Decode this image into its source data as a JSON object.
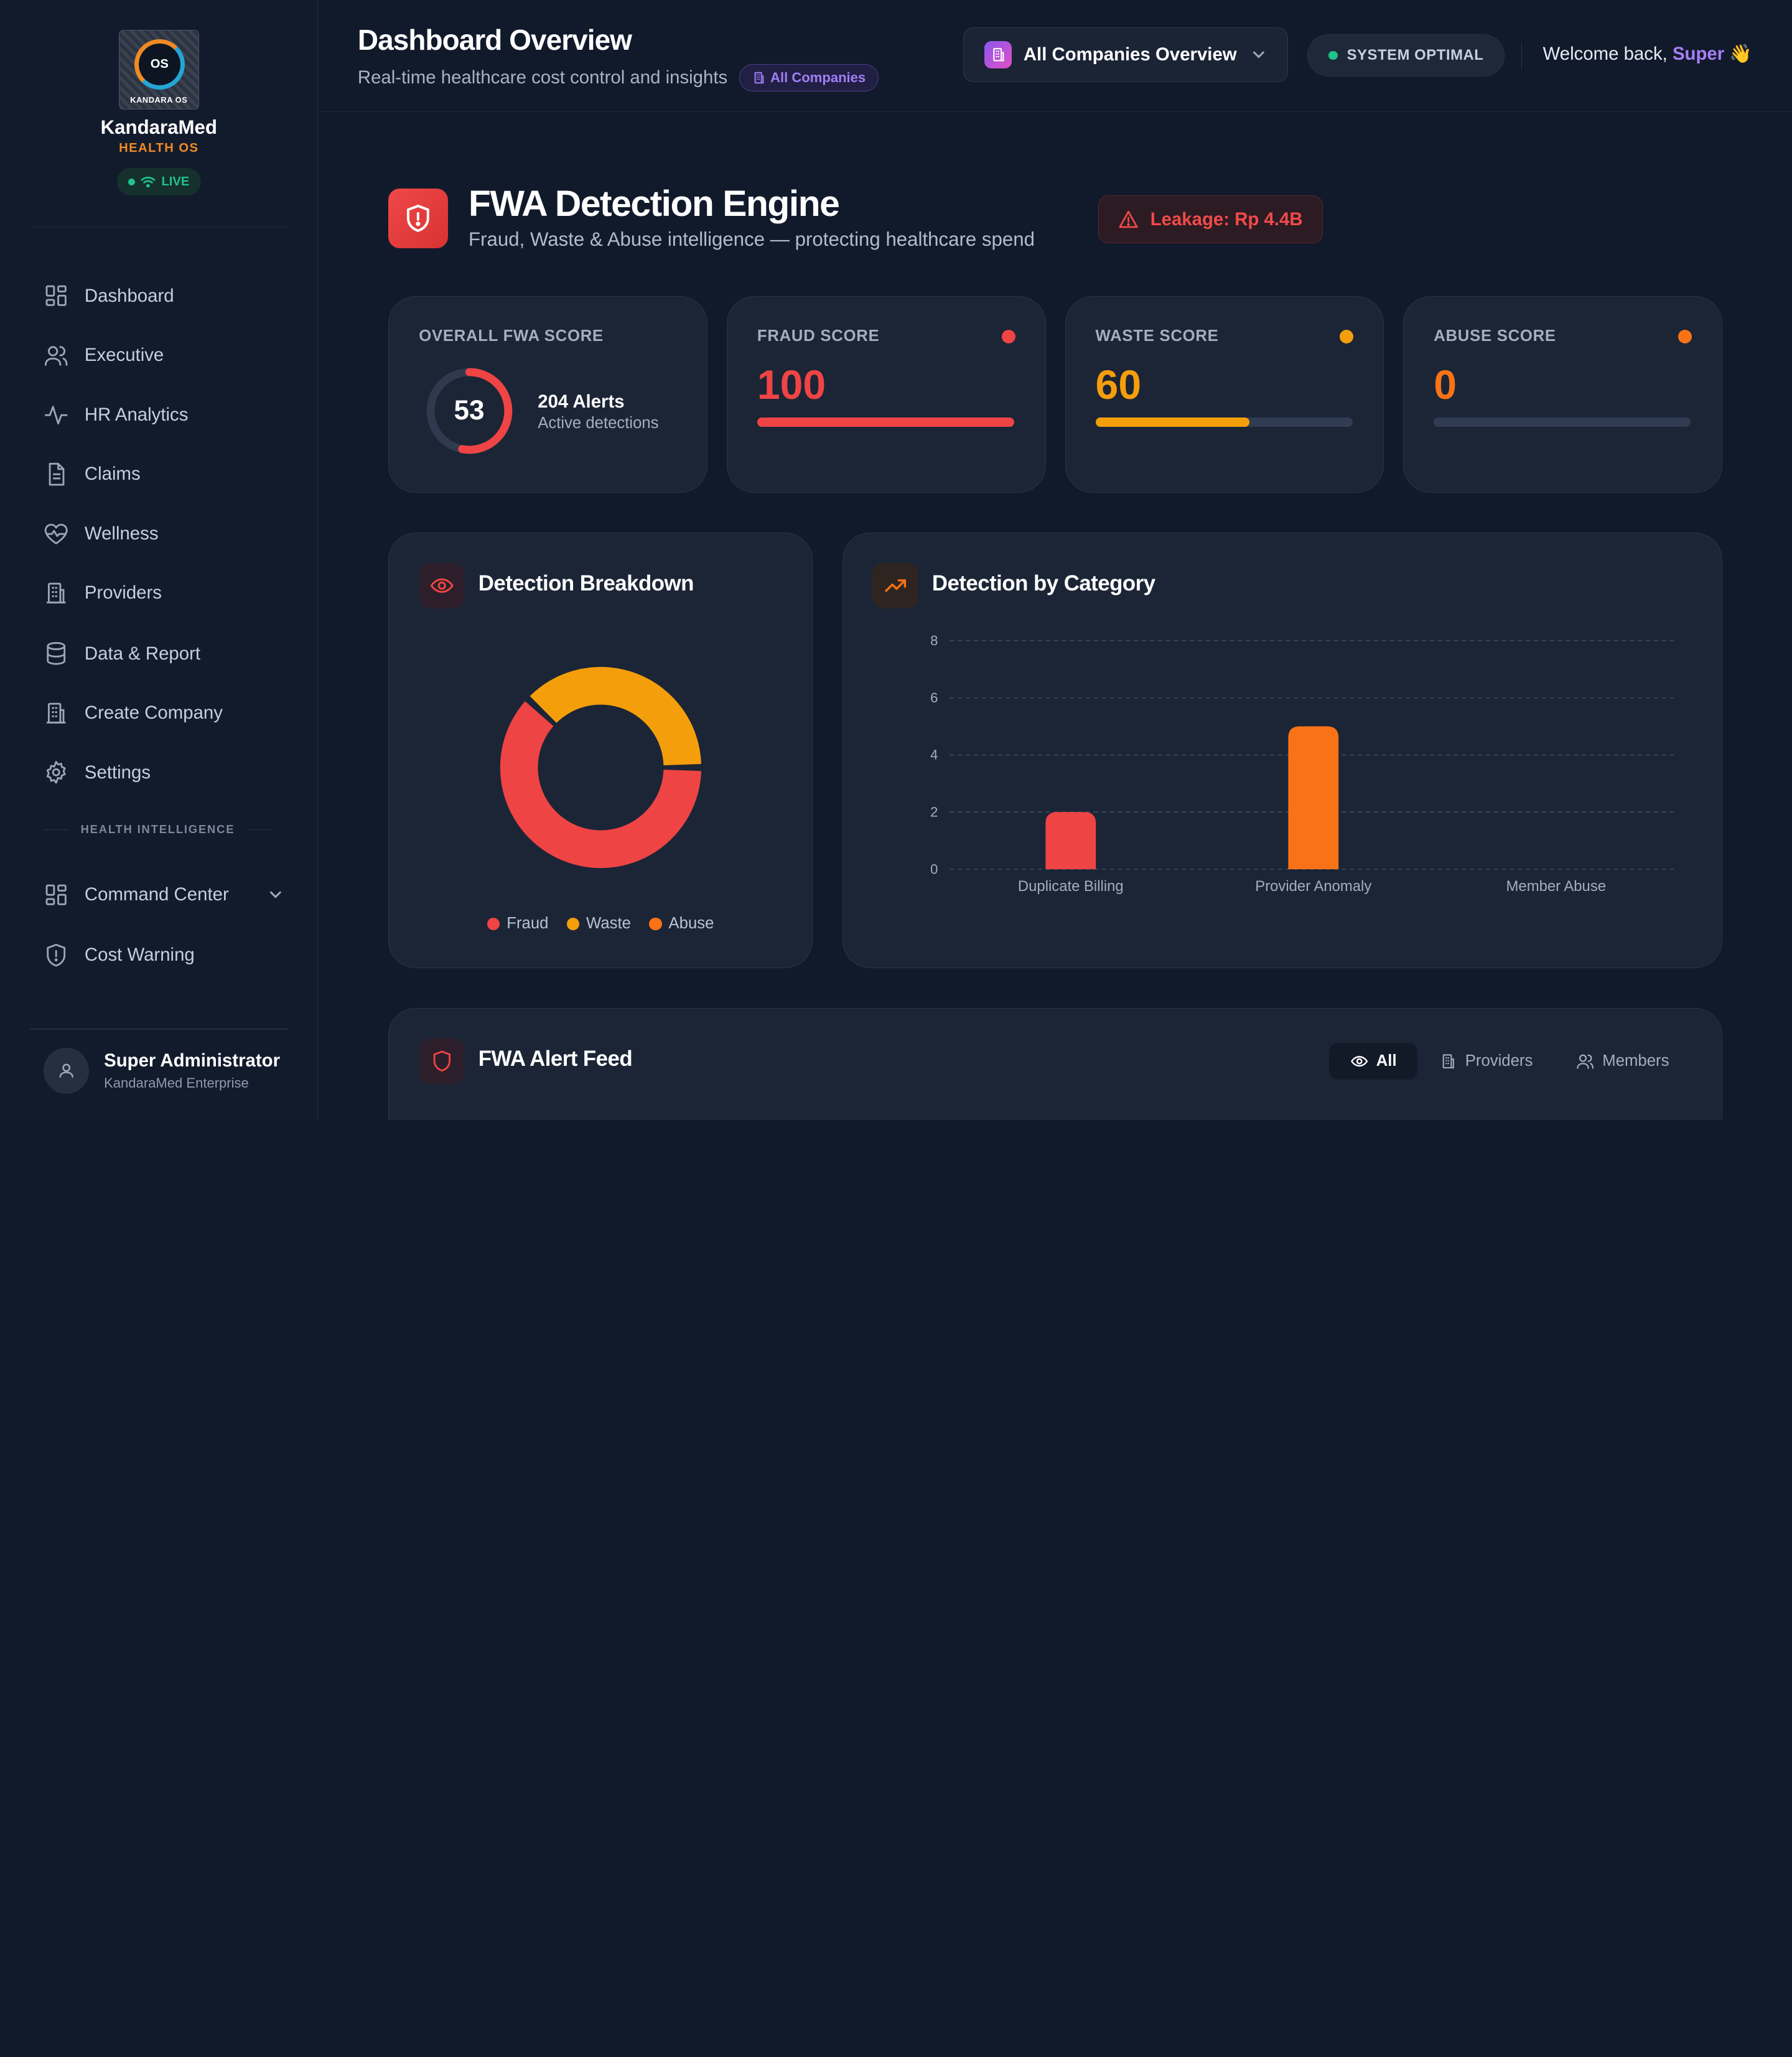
{
  "brand": {
    "logo_text": "OS",
    "logo_subtext": "KANDARA OS",
    "name": "KandaraMed",
    "tagline": "HEALTH OS",
    "live_label": "LIVE"
  },
  "sidebar": {
    "items": [
      {
        "label": "Dashboard",
        "icon": "grid-icon"
      },
      {
        "label": "Executive",
        "icon": "users-icon"
      },
      {
        "label": "HR Analytics",
        "icon": "activity-icon"
      },
      {
        "label": "Claims",
        "icon": "document-icon"
      },
      {
        "label": "Wellness",
        "icon": "heart-pulse-icon"
      },
      {
        "label": "Providers",
        "icon": "building-icon"
      },
      {
        "label": "Data & Report",
        "icon": "database-icon"
      },
      {
        "label": "Create Company",
        "icon": "building-icon"
      },
      {
        "label": "Settings",
        "icon": "gear-icon"
      }
    ],
    "section_label": "HEALTH INTELLIGENCE",
    "intel_items": [
      {
        "label": "Command Center",
        "icon": "grid-icon"
      },
      {
        "label": "Cost Warning",
        "icon": "shield-alert-icon"
      }
    ],
    "user": {
      "name": "Super Administrator",
      "org": "KandaraMed Enterprise"
    }
  },
  "header": {
    "title": "Dashboard Overview",
    "subtitle": "Real-time healthcare cost control and insights",
    "scope_badge": "All Companies",
    "company_select": "All Companies Overview",
    "system_status": "SYSTEM OPTIMAL",
    "welcome_prefix": "Welcome back, ",
    "welcome_user": "Super",
    "welcome_emoji": "👋"
  },
  "fwa": {
    "title": "FWA Detection Engine",
    "subtitle": "Fraud, Waste & Abuse intelligence — protecting healthcare spend",
    "leakage": "Leakage: Rp 4.4B"
  },
  "scores": {
    "overall": {
      "label": "OVERALL FWA SCORE",
      "value": "53",
      "level": 0.53,
      "alerts": "204 Alerts",
      "alerts_sub": "Active detections"
    },
    "cards": [
      {
        "label": "FRAUD SCORE",
        "value": "100",
        "level": 1.0,
        "color": "#ef4444"
      },
      {
        "label": "WASTE SCORE",
        "value": "60",
        "level": 0.6,
        "color": "#f59e0b"
      },
      {
        "label": "ABUSE SCORE",
        "value": "0",
        "level": 0.0,
        "color": "#f97316"
      }
    ]
  },
  "breakdown": {
    "title": "Detection Breakdown",
    "legend": [
      {
        "label": "Fraud",
        "color": "#ef4444"
      },
      {
        "label": "Waste",
        "color": "#f59e0b"
      },
      {
        "label": "Abuse",
        "color": "#f97316"
      }
    ]
  },
  "category": {
    "title": "Detection by Category"
  },
  "chart_data": [
    {
      "type": "pie",
      "categories": [
        "Fraud",
        "Waste",
        "Abuse"
      ],
      "values": [
        62,
        38,
        0
      ],
      "colors": [
        "#ef4444",
        "#f59e0b",
        "#f97316"
      ],
      "donut": true
    },
    {
      "type": "bar",
      "categories": [
        "Duplicate Billing",
        "Provider Anomaly",
        "Member Abuse"
      ],
      "values": [
        2,
        5,
        0
      ],
      "colors": [
        "#ef4444",
        "#f97316",
        "#ef4444"
      ],
      "yticks": [
        0,
        2,
        4,
        6,
        8
      ],
      "ylim": [
        0,
        8
      ],
      "grid": true
    }
  ],
  "alert_feed": {
    "title": "FWA Alert Feed",
    "tabs": [
      {
        "label": "All",
        "icon": "eye-icon",
        "active": true
      },
      {
        "label": "Providers",
        "icon": "building-icon",
        "active": false
      },
      {
        "label": "Members",
        "icon": "users-icon",
        "active": false
      }
    ]
  }
}
